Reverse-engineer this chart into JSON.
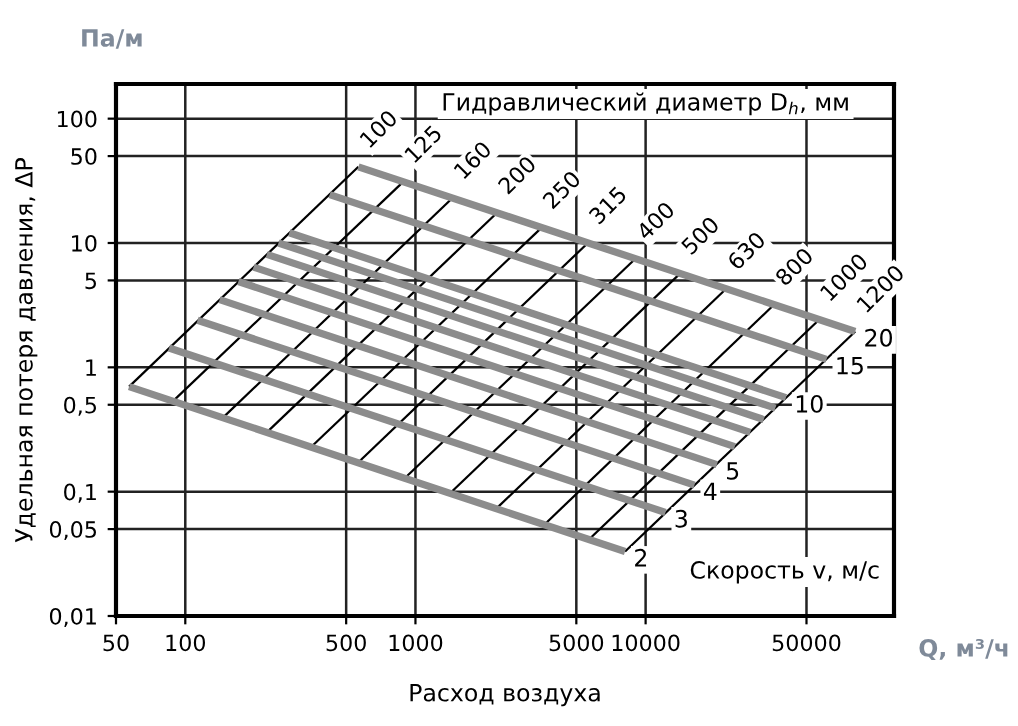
{
  "chart_data": {
    "type": "line",
    "xlabel": "Расход воздуха",
    "ylabel": "Удельная потеря давления, ΔP",
    "annotations": [
      "Па/м",
      "Q, м³/ч",
      "Гидравлический диаметр D$_{h}$, мм",
      "Скорость v, м/с"
    ],
    "log": "xy",
    "xlim": [
      50,
      120000
    ],
    "xticks": [
      50,
      100,
      500,
      1000,
      5000,
      10000,
      50000
    ],
    "ylim": [
      0.01,
      190
    ],
    "yticks": [
      {
        "value": 0.01,
        "label": "0,01"
      },
      {
        "value": 0.05,
        "label": "0,05"
      },
      {
        "value": 0.1,
        "label": "0,1"
      },
      {
        "value": 0.5,
        "label": "0,5"
      },
      1,
      5,
      10,
      50,
      100
    ],
    "grid": true,
    "legend": false,
    "marker": "none",
    "line_style": "solid",
    "series": [
      {
        "name": "2",
        "color": "#8c8c8c",
        "x": [
          57,
          8140
        ],
        "values": [
          0.7,
          0.033
        ]
      },
      {
        "name": "3",
        "color": "#8c8c8c",
        "x": [
          85,
          12200
        ],
        "values": [
          1.43,
          0.068
        ]
      },
      {
        "name": "4",
        "color": "#8c8c8c",
        "x": [
          113,
          16300
        ],
        "values": [
          2.39,
          0.113
        ]
      },
      {
        "name": "5",
        "color": "#8c8c8c",
        "x": [
          141,
          20400
        ],
        "values": [
          3.5,
          0.165
        ]
      },
      {
        "color": "#8c8c8c",
        "x": [
          170,
          24400
        ],
        "values": [
          4.9,
          0.23
        ]
      },
      {
        "color": "#8c8c8c",
        "x": [
          198,
          28500
        ],
        "values": [
          6.4,
          0.3
        ]
      },
      {
        "color": "#8c8c8c",
        "x": [
          226,
          32600
        ],
        "values": [
          8.1,
          0.38
        ]
      },
      {
        "color": "#8c8c8c",
        "x": [
          254,
          36600
        ],
        "values": [
          10,
          0.47
        ]
      },
      {
        "name": "10",
        "color": "#8c8c8c",
        "x": [
          283,
          40700
        ],
        "values": [
          12.1,
          0.57
        ]
      },
      {
        "name": "15",
        "color": "#8c8c8c",
        "x": [
          424,
          61100
        ],
        "values": [
          24.5,
          1.16
        ]
      },
      {
        "name": "20",
        "color": "#8c8c8c",
        "x": [
          565,
          81400
        ],
        "values": [
          41,
          1.94
        ]
      },
      {
        "name": "100",
        "color": "#000000",
        "x": [
          57,
          565
        ],
        "values": [
          0.7,
          41
        ]
      },
      {
        "name": "125",
        "color": "#000000",
        "x": [
          88,
          884
        ],
        "values": [
          0.53,
          31
        ]
      },
      {
        "name": "160",
        "color": "#000000",
        "x": [
          145,
          1448
        ],
        "values": [
          0.39,
          23
        ]
      },
      {
        "name": "200",
        "color": "#000000",
        "x": [
          226,
          2262
        ],
        "values": [
          0.3,
          17.5
        ]
      },
      {
        "name": "250",
        "color": "#000000",
        "x": [
          353,
          3534
        ],
        "values": [
          0.23,
          13.3
        ]
      },
      {
        "name": "315",
        "color": "#000000",
        "x": [
          561,
          5611
        ],
        "values": [
          0.17,
          10
        ]
      },
      {
        "name": "400",
        "color": "#000000",
        "x": [
          905,
          9048
        ],
        "values": [
          0.13,
          7.5
        ]
      },
      {
        "name": "500",
        "color": "#000000",
        "x": [
          1414,
          14137
        ],
        "values": [
          0.097,
          5.7
        ]
      },
      {
        "name": "630",
        "color": "#000000",
        "x": [
          2244,
          22444
        ],
        "values": [
          0.073,
          4.3
        ]
      },
      {
        "name": "800",
        "color": "#000000",
        "x": [
          3619,
          36191
        ],
        "values": [
          0.054,
          3.2
        ]
      },
      {
        "name": "1000",
        "color": "#000000",
        "x": [
          5655,
          56549
        ],
        "values": [
          0.041,
          2.4
        ]
      },
      {
        "name": "1200",
        "color": "#000000",
        "x": [
          8143,
          81430
        ],
        "values": [
          0.033,
          1.94
        ]
      }
    ]
  }
}
